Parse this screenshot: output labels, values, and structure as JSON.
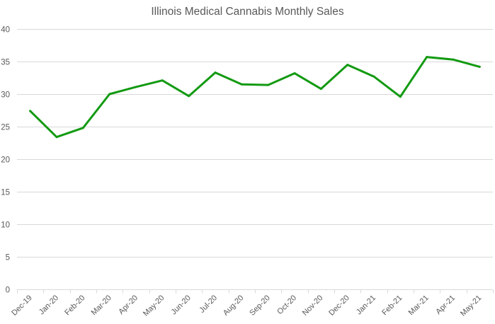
{
  "chart_data": {
    "type": "line",
    "title": "Illinois Medical Cannabis Monthly Sales",
    "xlabel": "",
    "ylabel": "",
    "categories": [
      "Dec-19",
      "Jan-20",
      "Feb-20",
      "Mar-20",
      "Apr-20",
      "May-20",
      "Jun-20",
      "Jul-20",
      "Aug-20",
      "Sep-20",
      "Oct-20",
      "Nov-20",
      "Dec-20",
      "Jan-21",
      "Feb-21",
      "Mar-21",
      "Apr-21",
      "May-21"
    ],
    "series": [
      {
        "name": "Monthly Sales",
        "color": "#139a12",
        "values": [
          27.4,
          23.4,
          24.8,
          30.0,
          31.1,
          32.1,
          29.7,
          33.3,
          31.5,
          31.4,
          33.2,
          30.8,
          34.5,
          32.7,
          29.6,
          35.7,
          35.3,
          34.2
        ]
      }
    ],
    "ylim": [
      0,
      40
    ],
    "yticks": [
      "0",
      "5",
      "10",
      "15",
      "20",
      "25",
      "30",
      "35",
      "40"
    ],
    "grid": true,
    "legend": "none"
  }
}
